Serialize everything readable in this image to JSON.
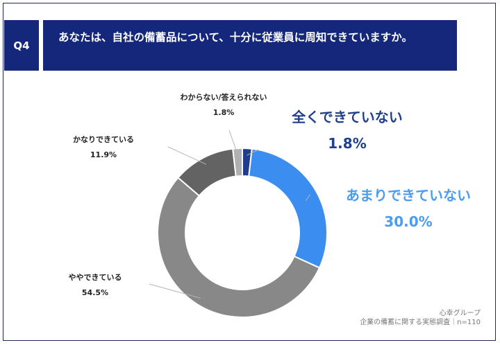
{
  "question": {
    "number": "Q4",
    "text": "あなたは、自社の備蓄品について、十分に従業員に周知できていますか。"
  },
  "chart_data": {
    "type": "pie",
    "variant": "donut",
    "slices": [
      {
        "label": "全くできていない",
        "value": 1.8,
        "display": "1.8%",
        "color": "#1f3d8a"
      },
      {
        "label": "あまりできていない",
        "value": 30.0,
        "display": "30.0%",
        "color": "#3b8ef0"
      },
      {
        "label": "ややできている",
        "value": 54.5,
        "display": "54.5%",
        "color": "#888888"
      },
      {
        "label": "かなりできている",
        "value": 11.9,
        "display": "11.9%",
        "color": "#636363"
      },
      {
        "label": "わからない/答えられない",
        "value": 1.8,
        "display": "1.8%",
        "color": "#b0b0b0"
      }
    ]
  },
  "source": {
    "brand": "心幸グループ",
    "survey": "企業の備蓄に関する実態調査｜n=110"
  }
}
